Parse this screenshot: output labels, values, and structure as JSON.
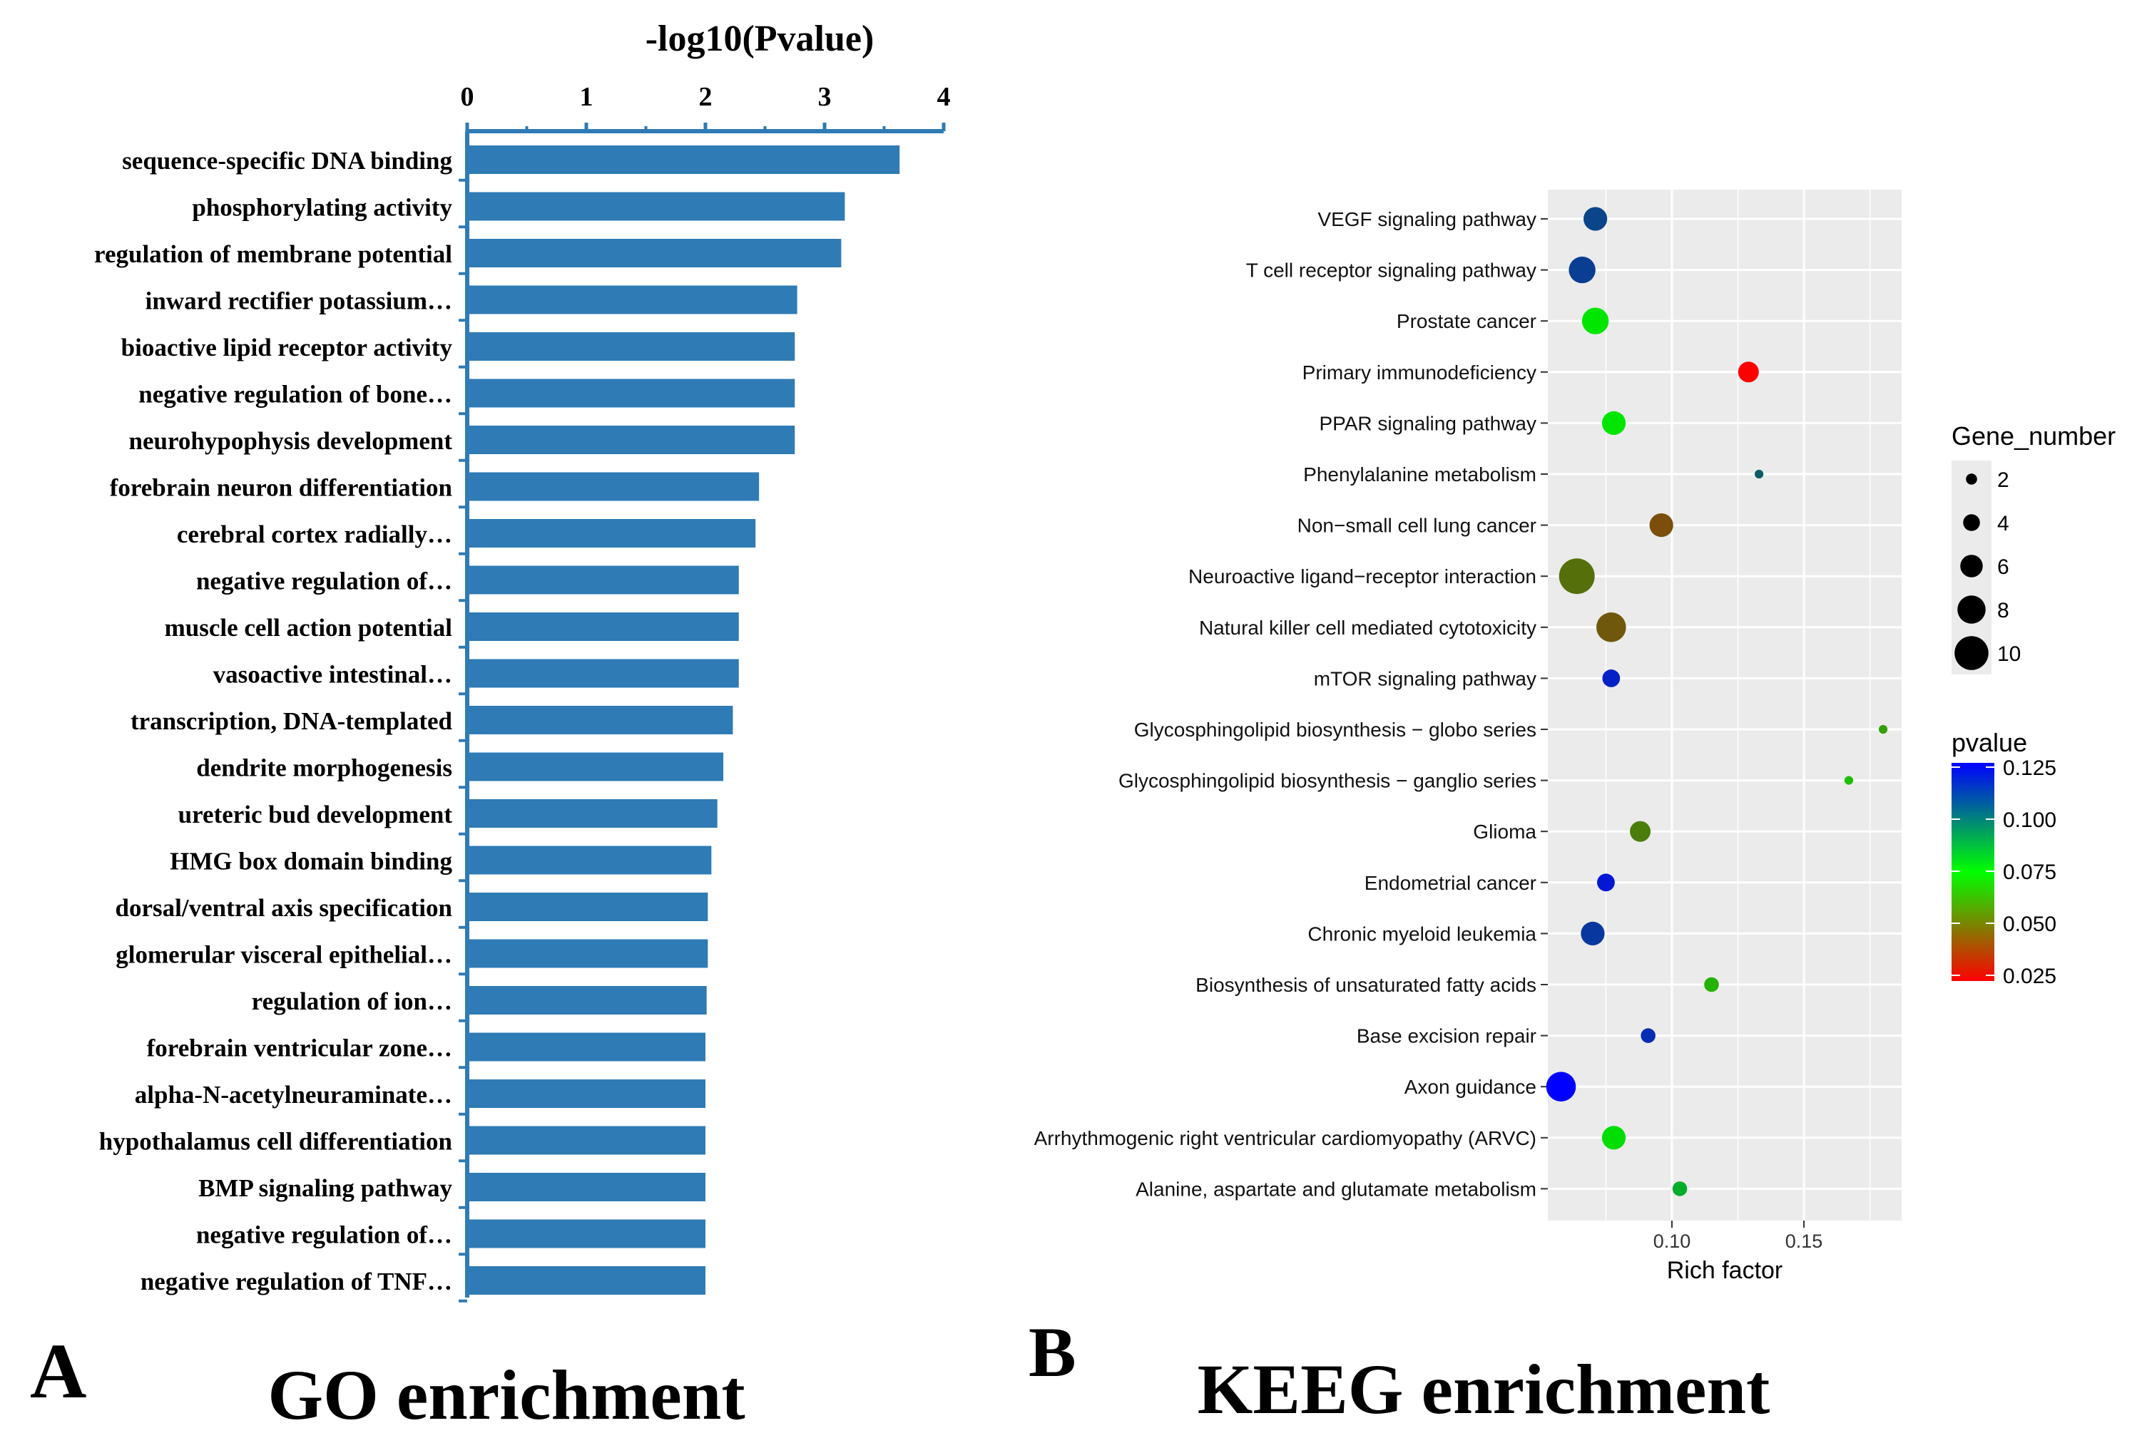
{
  "panels": {
    "a_letter": "A",
    "a_caption": "GO enrichment",
    "b_letter": "B",
    "b_caption": "KEEG enrichment"
  },
  "chart_data": [
    {
      "type": "bar",
      "orientation": "horizontal",
      "title": "-log10(Pvalue)",
      "xlabel": "-log10(Pvalue)",
      "xlim": [
        0,
        4
      ],
      "xticks": [
        "0",
        "1",
        "2",
        "3",
        "4"
      ],
      "axis_position": "top",
      "bar_color": "#2E7BB5",
      "categories": [
        "sequence-specific DNA binding",
        "phosphorylating activity",
        "regulation of membrane potential",
        "inward rectifier potassium…",
        "bioactive lipid receptor activity",
        "negative regulation of bone…",
        "neurohypophysis development",
        "forebrain neuron differentiation",
        "cerebral cortex radially…",
        "negative regulation of…",
        "muscle cell action potential",
        "vasoactive intestinal…",
        "transcription, DNA-templated",
        "dendrite morphogenesis",
        "ureteric bud development",
        "HMG box domain binding",
        "dorsal/ventral axis specification",
        "glomerular visceral epithelial…",
        "regulation of ion…",
        "forebrain ventricular zone…",
        "alpha-N-acetylneuraminate…",
        "hypothalamus cell differentiation",
        "BMP signaling pathway",
        "negative regulation of…",
        "negative regulation of TNF…"
      ],
      "values": [
        3.63,
        3.17,
        3.14,
        2.77,
        2.75,
        2.75,
        2.75,
        2.45,
        2.42,
        2.28,
        2.28,
        2.28,
        2.23,
        2.15,
        2.1,
        2.05,
        2.02,
        2.02,
        2.01,
        2.0,
        2.0,
        2.0,
        2.0,
        2.0,
        2.0
      ]
    },
    {
      "type": "scatter",
      "subtype": "bubble",
      "xlabel": "Rich factor",
      "xticks": [
        0.1,
        0.15
      ],
      "xlim": [
        0.053,
        0.187
      ],
      "categories": [
        "VEGF signaling pathway",
        "T cell receptor signaling pathway",
        "Prostate cancer",
        "Primary immunodeficiency",
        "PPAR signaling pathway",
        "Phenylalanine metabolism",
        "Non−small cell lung cancer",
        "Neuroactive ligand−receptor interaction",
        "Natural killer cell mediated cytotoxicity",
        "mTOR signaling pathway",
        "Glycosphingolipid biosynthesis − globo series",
        "Glycosphingolipid biosynthesis − ganglio series",
        "Glioma",
        "Endometrial cancer",
        "Chronic myeloid leukemia",
        "Biosynthesis of unsaturated fatty acids",
        "Base excision repair",
        "Axon guidance",
        "Arrhythmogenic right ventricular cardiomyopathy (ARVC)",
        "Alanine, aspartate and glutamate metabolism"
      ],
      "rich_factor": [
        0.071,
        0.066,
        0.071,
        0.129,
        0.078,
        0.133,
        0.096,
        0.064,
        0.077,
        0.077,
        0.18,
        0.167,
        0.088,
        0.075,
        0.07,
        0.115,
        0.091,
        0.058,
        0.078,
        0.103
      ],
      "gene_number": [
        6,
        7,
        7,
        5,
        6,
        1,
        6,
        10,
        8,
        4,
        1,
        1,
        5,
        4,
        6,
        3,
        3,
        8,
        6,
        3
      ],
      "pvalue": [
        0.108,
        0.11,
        0.075,
        0.025,
        0.075,
        0.1,
        0.045,
        0.055,
        0.048,
        0.118,
        0.065,
        0.07,
        0.058,
        0.12,
        0.112,
        0.068,
        0.115,
        0.125,
        0.076,
        0.083
      ],
      "size_legend": {
        "title": "Gene_number",
        "labels": [
          "2",
          "4",
          "6",
          "8",
          "10"
        ],
        "values": [
          2,
          4,
          6,
          8,
          10
        ]
      },
      "color_legend": {
        "title": "pvalue",
        "labels": [
          "0.125",
          "0.100",
          "0.075",
          "0.050",
          "0.025"
        ],
        "values": [
          0.125,
          0.1,
          0.075,
          0.05,
          0.025
        ],
        "gradient": [
          "#0000FF",
          "#00FF00",
          "#FF0000"
        ]
      },
      "grid": true,
      "panel_background": "#EBEBEB"
    }
  ]
}
